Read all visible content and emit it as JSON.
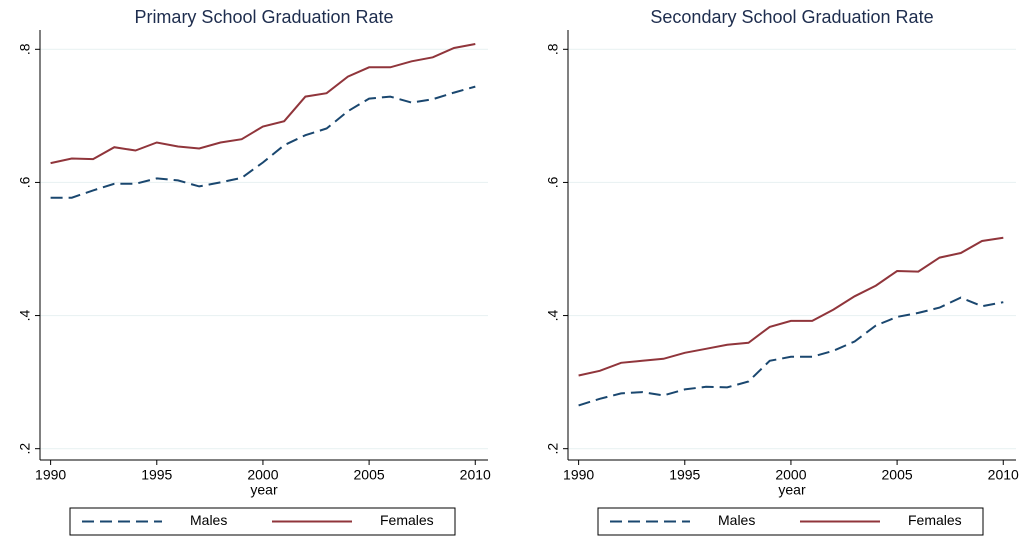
{
  "chart_data": [
    {
      "type": "line",
      "title": "Primary School Graduation Rate",
      "x_label": "year",
      "x": [
        1990,
        1991,
        1992,
        1993,
        1994,
        1995,
        1996,
        1997,
        1998,
        1999,
        2000,
        2001,
        2002,
        2003,
        2004,
        2005,
        2006,
        2007,
        2008,
        2009,
        2010
      ],
      "series": [
        {
          "name": "Males",
          "color": "#1a476f",
          "line_style": "dashed",
          "values": [
            0.577,
            0.577,
            0.588,
            0.598,
            0.598,
            0.606,
            0.603,
            0.594,
            0.6,
            0.607,
            0.63,
            0.656,
            0.671,
            0.681,
            0.707,
            0.726,
            0.729,
            0.72,
            0.725,
            0.735,
            0.744
          ]
        },
        {
          "name": "Females",
          "color": "#90353b",
          "line_style": "solid",
          "values": [
            0.629,
            0.636,
            0.635,
            0.653,
            0.648,
            0.66,
            0.654,
            0.651,
            0.66,
            0.665,
            0.684,
            0.692,
            0.729,
            0.734,
            0.759,
            0.773,
            0.773,
            0.782,
            0.788,
            0.802,
            0.808
          ]
        }
      ],
      "xlim": [
        1989.5,
        2010.6
      ],
      "xticks": [
        1990,
        1995,
        2000,
        2005,
        2010
      ],
      "ylim": [
        0.183,
        0.829
      ],
      "yticks": [
        {
          "value": 0.2,
          "label": ".2"
        },
        {
          "value": 0.4,
          "label": ".4"
        },
        {
          "value": 0.6,
          "label": ".6"
        },
        {
          "value": 0.8,
          "label": ".8"
        }
      ],
      "grid": true,
      "legend": "bottom"
    },
    {
      "type": "line",
      "title": "Secondary School Graduation Rate",
      "x_label": "year",
      "x": [
        1990,
        1991,
        1992,
        1993,
        1994,
        1995,
        1996,
        1997,
        1998,
        1999,
        2000,
        2001,
        2002,
        2003,
        2004,
        2005,
        2006,
        2007,
        2008,
        2009,
        2010
      ],
      "series": [
        {
          "name": "Males",
          "color": "#1a476f",
          "line_style": "dashed",
          "values": [
            0.265,
            0.275,
            0.283,
            0.285,
            0.28,
            0.289,
            0.293,
            0.292,
            0.301,
            0.332,
            0.338,
            0.338,
            0.347,
            0.361,
            0.385,
            0.398,
            0.404,
            0.412,
            0.427,
            0.414,
            0.42
          ]
        },
        {
          "name": "Females",
          "color": "#90353b",
          "line_style": "solid",
          "values": [
            0.31,
            0.317,
            0.329,
            0.332,
            0.335,
            0.344,
            0.35,
            0.356,
            0.359,
            0.383,
            0.392,
            0.392,
            0.409,
            0.429,
            0.445,
            0.467,
            0.466,
            0.487,
            0.494,
            0.512,
            0.517
          ]
        }
      ],
      "xlim": [
        1989.5,
        2010.6
      ],
      "xticks": [
        1990,
        1995,
        2000,
        2005,
        2010
      ],
      "ylim": [
        0.183,
        0.829
      ],
      "yticks": [
        {
          "value": 0.2,
          "label": ".2"
        },
        {
          "value": 0.4,
          "label": ".4"
        },
        {
          "value": 0.6,
          "label": ".6"
        },
        {
          "value": 0.8,
          "label": ".8"
        }
      ],
      "grid": true,
      "legend": "bottom"
    }
  ]
}
